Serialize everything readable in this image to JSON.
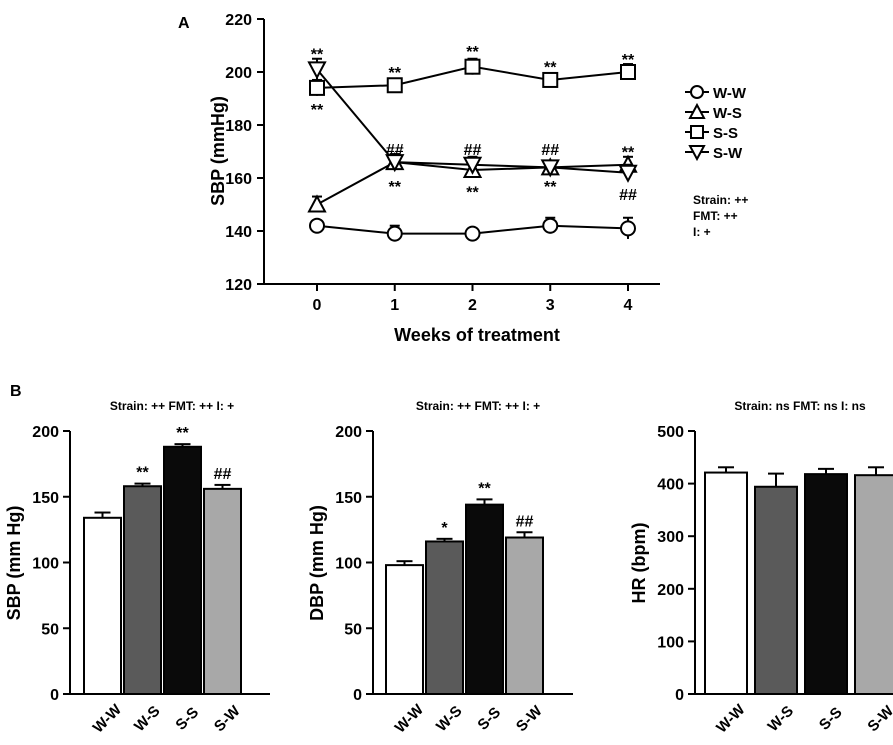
{
  "panel_labels": {
    "a": "A",
    "b": "B"
  },
  "chart_data": [
    {
      "type": "line",
      "panel": "A",
      "xlabel": "Weeks of treatment",
      "ylabel": "SBP (mmHg)",
      "x": [
        0,
        1,
        2,
        3,
        4
      ],
      "xlim": [
        -0.5,
        4.5
      ],
      "ylim": [
        120,
        220
      ],
      "yticks": [
        120,
        140,
        160,
        180,
        200,
        220
      ],
      "series": [
        {
          "name": "W-W",
          "marker": "circle",
          "values": [
            142,
            139,
            139,
            142,
            141
          ],
          "errors": [
            2,
            3,
            2,
            3,
            4
          ]
        },
        {
          "name": "W-S",
          "marker": "triangle-up",
          "values": [
            150,
            166,
            163,
            164,
            165
          ],
          "errors": [
            3,
            3,
            3,
            2,
            3
          ]
        },
        {
          "name": "S-S",
          "marker": "square",
          "values": [
            194,
            195,
            202,
            197,
            200
          ],
          "errors": [
            3,
            2,
            3,
            2,
            3
          ]
        },
        {
          "name": "S-W",
          "marker": "triangle-down",
          "values": [
            201,
            166,
            165,
            164,
            162
          ],
          "errors": [
            4,
            3,
            3,
            2,
            3
          ]
        }
      ],
      "legend_position": "right",
      "annotations": [
        {
          "text": "**",
          "x": 0,
          "y": 207
        },
        {
          "text": "**",
          "x": 0,
          "y": 186
        },
        {
          "text": "**",
          "x": 1,
          "y": 200
        },
        {
          "text": "##",
          "x": 1,
          "y": 171
        },
        {
          "text": "**",
          "x": 1,
          "y": 157
        },
        {
          "text": "**",
          "x": 2,
          "y": 208
        },
        {
          "text": "##",
          "x": 2,
          "y": 171
        },
        {
          "text": "**",
          "x": 2,
          "y": 155
        },
        {
          "text": "**",
          "x": 3,
          "y": 202
        },
        {
          "text": "##",
          "x": 3,
          "y": 171
        },
        {
          "text": "**",
          "x": 3,
          "y": 157
        },
        {
          "text": "**",
          "x": 4,
          "y": 205
        },
        {
          "text": "**",
          "x": 4,
          "y": 170
        },
        {
          "text": "##",
          "x": 4,
          "y": 154
        }
      ],
      "stats": [
        "Strain: ++",
        "FMT: ++",
        "I: +"
      ]
    },
    {
      "type": "bar",
      "panel": "B",
      "ylabel": "SBP (mm Hg)",
      "categories": [
        "W-W",
        "W-S",
        "S-S",
        "S-W"
      ],
      "values": [
        134,
        158,
        188,
        156
      ],
      "errors": [
        4,
        2,
        2,
        3
      ],
      "colors": [
        "#ffffff",
        "#5a5a5a",
        "#0a0a0a",
        "#a8a8a8"
      ],
      "ylim": [
        0,
        200
      ],
      "yticks": [
        0,
        50,
        100,
        150,
        200
      ],
      "significance": [
        "",
        "**",
        "**",
        "##"
      ],
      "stats": "Strain: ++  FMT: ++  I: +"
    },
    {
      "type": "bar",
      "panel": "B",
      "ylabel": "DBP (mm Hg)",
      "categories": [
        "W-W",
        "W-S",
        "S-S",
        "S-W"
      ],
      "values": [
        98,
        116,
        144,
        119
      ],
      "errors": [
        3,
        2,
        4,
        4
      ],
      "colors": [
        "#ffffff",
        "#5a5a5a",
        "#0a0a0a",
        "#a8a8a8"
      ],
      "ylim": [
        0,
        200
      ],
      "yticks": [
        0,
        50,
        100,
        150,
        200
      ],
      "significance": [
        "",
        "*",
        "**",
        "##"
      ],
      "stats": "Strain: ++  FMT: ++  I: +"
    },
    {
      "type": "bar",
      "panel": "B",
      "ylabel": "HR (bpm)",
      "categories": [
        "W-W",
        "W-S",
        "S-S",
        "S-W"
      ],
      "values": [
        421,
        394,
        418,
        416
      ],
      "errors": [
        10,
        25,
        10,
        15
      ],
      "colors": [
        "#ffffff",
        "#5a5a5a",
        "#0a0a0a",
        "#a8a8a8"
      ],
      "ylim": [
        0,
        500
      ],
      "yticks": [
        0,
        100,
        200,
        300,
        400,
        500
      ],
      "significance": [
        "",
        "",
        "",
        ""
      ],
      "stats": "Strain: ns  FMT: ns  I: ns"
    }
  ]
}
